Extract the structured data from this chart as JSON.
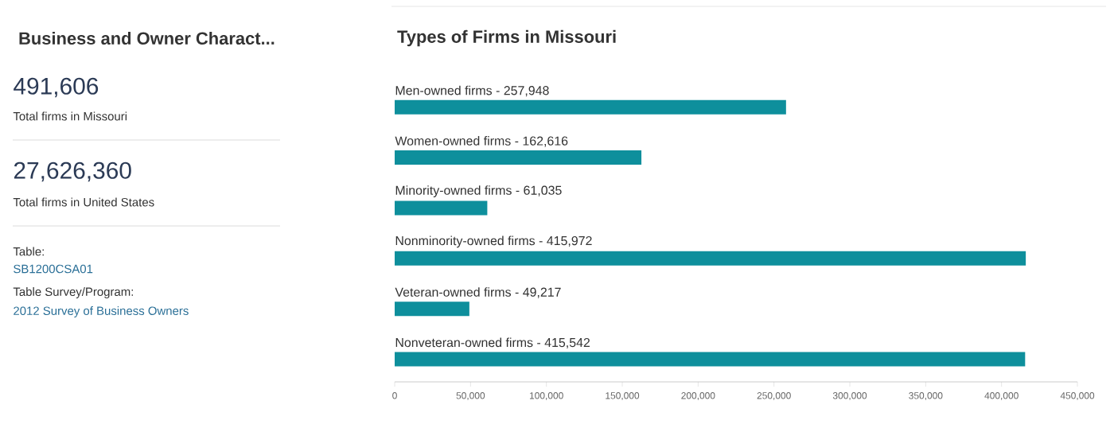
{
  "chart_data": [
    {
      "type": "other",
      "title": "Business and Owner Charact...",
      "annotations": [
        "491,606",
        "Total firms in Missouri",
        "27,626,360",
        "Total firms in United States",
        "Table:",
        "SB1200CSA01",
        "Table Survey/Program:",
        "2012 Survey of Business Owners"
      ]
    },
    {
      "type": "bar",
      "orientation": "horizontal",
      "title": "Types of Firms in Missouri",
      "categories": [
        "Men-owned firms - 257,948",
        "Women-owned firms - 162,616",
        "Minority-owned firms - 61,035",
        "Nonminority-owned firms - 415,972",
        "Veteran-owned firms - 49,217",
        "Nonveteran-owned firms - 415,542"
      ],
      "values": [
        257948,
        162616,
        61035,
        415972,
        49217,
        415542
      ],
      "color": "#0e8f9c",
      "xlim": [
        0,
        450000
      ],
      "xticks": [
        {
          "value": 0,
          "label": "0"
        },
        {
          "value": 50000,
          "label": "50,000"
        },
        {
          "value": 100000,
          "label": "100,000"
        },
        {
          "value": 150000,
          "label": "150,000"
        },
        {
          "value": 200000,
          "label": "200,000"
        },
        {
          "value": 250000,
          "label": "250,000"
        },
        {
          "value": 300000,
          "label": "300,000"
        },
        {
          "value": 350000,
          "label": "350,000"
        },
        {
          "value": 400000,
          "label": "400,000"
        },
        {
          "value": 450000,
          "label": "450,000"
        }
      ]
    }
  ]
}
